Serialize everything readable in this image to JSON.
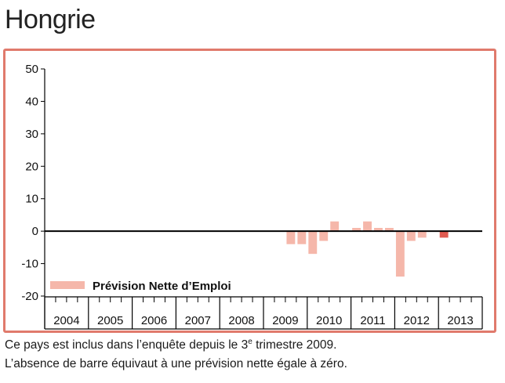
{
  "page": {
    "title": "Hongrie",
    "note_line1_a": "Ce pays est inclus dans l’enquête depuis le 3",
    "note_line1_sup": "e",
    "note_line1_b": " trimestre 2009.",
    "note_line2": "L’absence de barre équivaut à une prévision nette égale à zéro."
  },
  "colors": {
    "frame": "#e07a6c",
    "bar": "#f5b7aa",
    "bar_latest": "#e05a50",
    "axis": "#000000"
  },
  "chart_data": {
    "type": "bar",
    "title": "",
    "xlabel": "",
    "ylabel": "",
    "ylim": [
      -20,
      50
    ],
    "yticks": [
      "50",
      "40",
      "30",
      "20",
      "10",
      "0",
      "-10",
      "-20"
    ],
    "ytick_values": [
      50,
      40,
      30,
      20,
      10,
      0,
      -10,
      -20
    ],
    "years": [
      "2004",
      "2005",
      "2006",
      "2007",
      "2008",
      "2009",
      "2010",
      "2011",
      "2012",
      "2013"
    ],
    "quarters_per_year": 4,
    "legend": {
      "label": "Prévision Nette d’Emploi",
      "position": "bottom-left"
    },
    "series": [
      {
        "name": "Prévision Nette d’Emploi",
        "values": [
          null,
          null,
          null,
          null,
          null,
          null,
          null,
          null,
          null,
          null,
          null,
          null,
          null,
          null,
          null,
          null,
          null,
          null,
          null,
          null,
          null,
          null,
          -4,
          -4,
          -7,
          -3,
          3,
          0,
          1,
          3,
          1,
          1,
          -14,
          -3,
          -2,
          0,
          -2,
          null,
          null,
          null
        ],
        "highlight_last": true
      }
    ]
  }
}
